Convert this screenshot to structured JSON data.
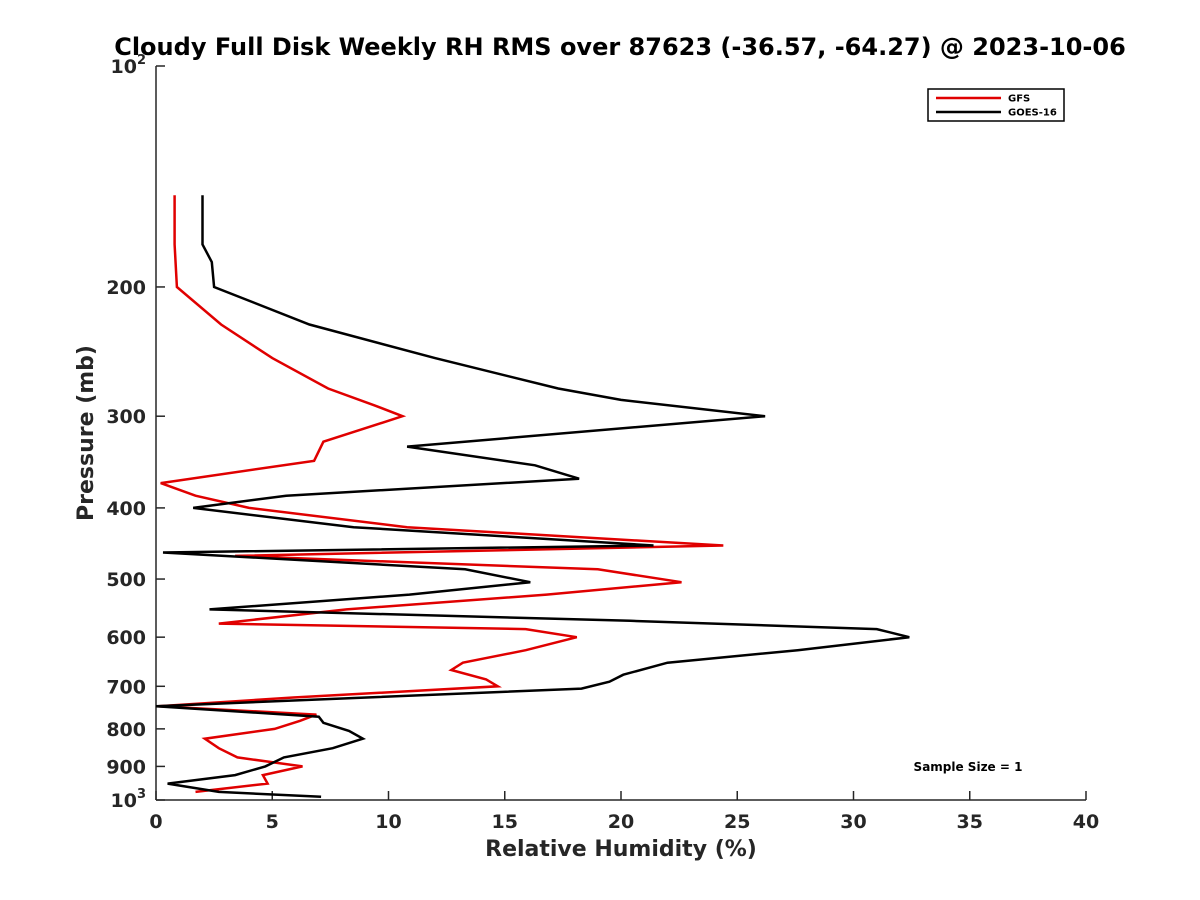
{
  "chart_data": {
    "type": "line",
    "title": "Cloudy Full Disk Weekly RH RMS over 87623 (-36.57, -64.27) @ 2023-10-06",
    "xlabel": "Relative Humidity (%)",
    "ylabel": "Pressure (mb)",
    "xlim": [
      0,
      40
    ],
    "ylim": [
      100,
      1000
    ],
    "y_scale": "log",
    "y_reversed": true,
    "x_ticks": [
      "0",
      "5",
      "10",
      "15",
      "20",
      "25",
      "30",
      "35",
      "40"
    ],
    "y_ticks": [
      {
        "value": 100,
        "base": "10",
        "exp": "2"
      },
      {
        "value": 200,
        "label": "200"
      },
      {
        "value": 300,
        "label": "300"
      },
      {
        "value": 400,
        "label": "400"
      },
      {
        "value": 500,
        "label": "500"
      },
      {
        "value": 600,
        "label": "600"
      },
      {
        "value": 700,
        "label": "700"
      },
      {
        "value": 800,
        "label": "800"
      },
      {
        "value": 900,
        "label": "900"
      },
      {
        "value": 1000,
        "base": "10",
        "exp": "3"
      }
    ],
    "legend_position": "top-right",
    "grid": false,
    "annotation": "Sample Size = 1",
    "series": [
      {
        "name": "GFS",
        "color": "#e00000",
        "points": [
          [
            0.8,
            150
          ],
          [
            0.8,
            175
          ],
          [
            0.9,
            200
          ],
          [
            2.8,
            225
          ],
          [
            5,
            250
          ],
          [
            7.4,
            275
          ],
          [
            9.4,
            290
          ],
          [
            10.6,
            300
          ],
          [
            7.2,
            325
          ],
          [
            6.8,
            345
          ],
          [
            0.2,
            370
          ],
          [
            1.7,
            385
          ],
          [
            4,
            400
          ],
          [
            10.8,
            425
          ],
          [
            24.4,
            450
          ],
          [
            3.4,
            465
          ],
          [
            19,
            485
          ],
          [
            22.6,
            505
          ],
          [
            16.8,
            525
          ],
          [
            8.2,
            550
          ],
          [
            2.7,
            575
          ],
          [
            15.9,
            585
          ],
          [
            18.1,
            600
          ],
          [
            15.9,
            625
          ],
          [
            13.2,
            650
          ],
          [
            12.7,
            665
          ],
          [
            14.2,
            685
          ],
          [
            14.7,
            700
          ],
          [
            5.9,
            725
          ],
          [
            0.1,
            745
          ],
          [
            6.9,
            765
          ],
          [
            6.2,
            780
          ],
          [
            5.1,
            800
          ],
          [
            2.1,
            825
          ],
          [
            2.7,
            850
          ],
          [
            3.5,
            875
          ],
          [
            6.3,
            900
          ],
          [
            4.6,
            925
          ],
          [
            4.8,
            950
          ],
          [
            1.7,
            975
          ]
        ]
      },
      {
        "name": "GOES-16",
        "color": "#000000",
        "points": [
          [
            2,
            150
          ],
          [
            2,
            175
          ],
          [
            2.4,
            185
          ],
          [
            2.5,
            200
          ],
          [
            6.6,
            225
          ],
          [
            12,
            250
          ],
          [
            17.3,
            275
          ],
          [
            20,
            285
          ],
          [
            26.2,
            300
          ],
          [
            10.8,
            330
          ],
          [
            16.3,
            350
          ],
          [
            18.2,
            365
          ],
          [
            5.6,
            385
          ],
          [
            1.6,
            400
          ],
          [
            8.5,
            425
          ],
          [
            21.4,
            450
          ],
          [
            0.3,
            460
          ],
          [
            13.3,
            485
          ],
          [
            16.1,
            505
          ],
          [
            10.9,
            525
          ],
          [
            2.3,
            550
          ],
          [
            20.4,
            570
          ],
          [
            31,
            585
          ],
          [
            32.4,
            600
          ],
          [
            27.6,
            625
          ],
          [
            22,
            650
          ],
          [
            20.1,
            675
          ],
          [
            19.5,
            690
          ],
          [
            18.3,
            705
          ],
          [
            0,
            745
          ],
          [
            7,
            770
          ],
          [
            7.2,
            785
          ],
          [
            8.3,
            805
          ],
          [
            8.9,
            825
          ],
          [
            7.6,
            850
          ],
          [
            5.5,
            875
          ],
          [
            4.7,
            900
          ],
          [
            3.4,
            925
          ],
          [
            0.5,
            950
          ],
          [
            2.7,
            975
          ],
          [
            7.1,
            990
          ]
        ]
      }
    ]
  }
}
